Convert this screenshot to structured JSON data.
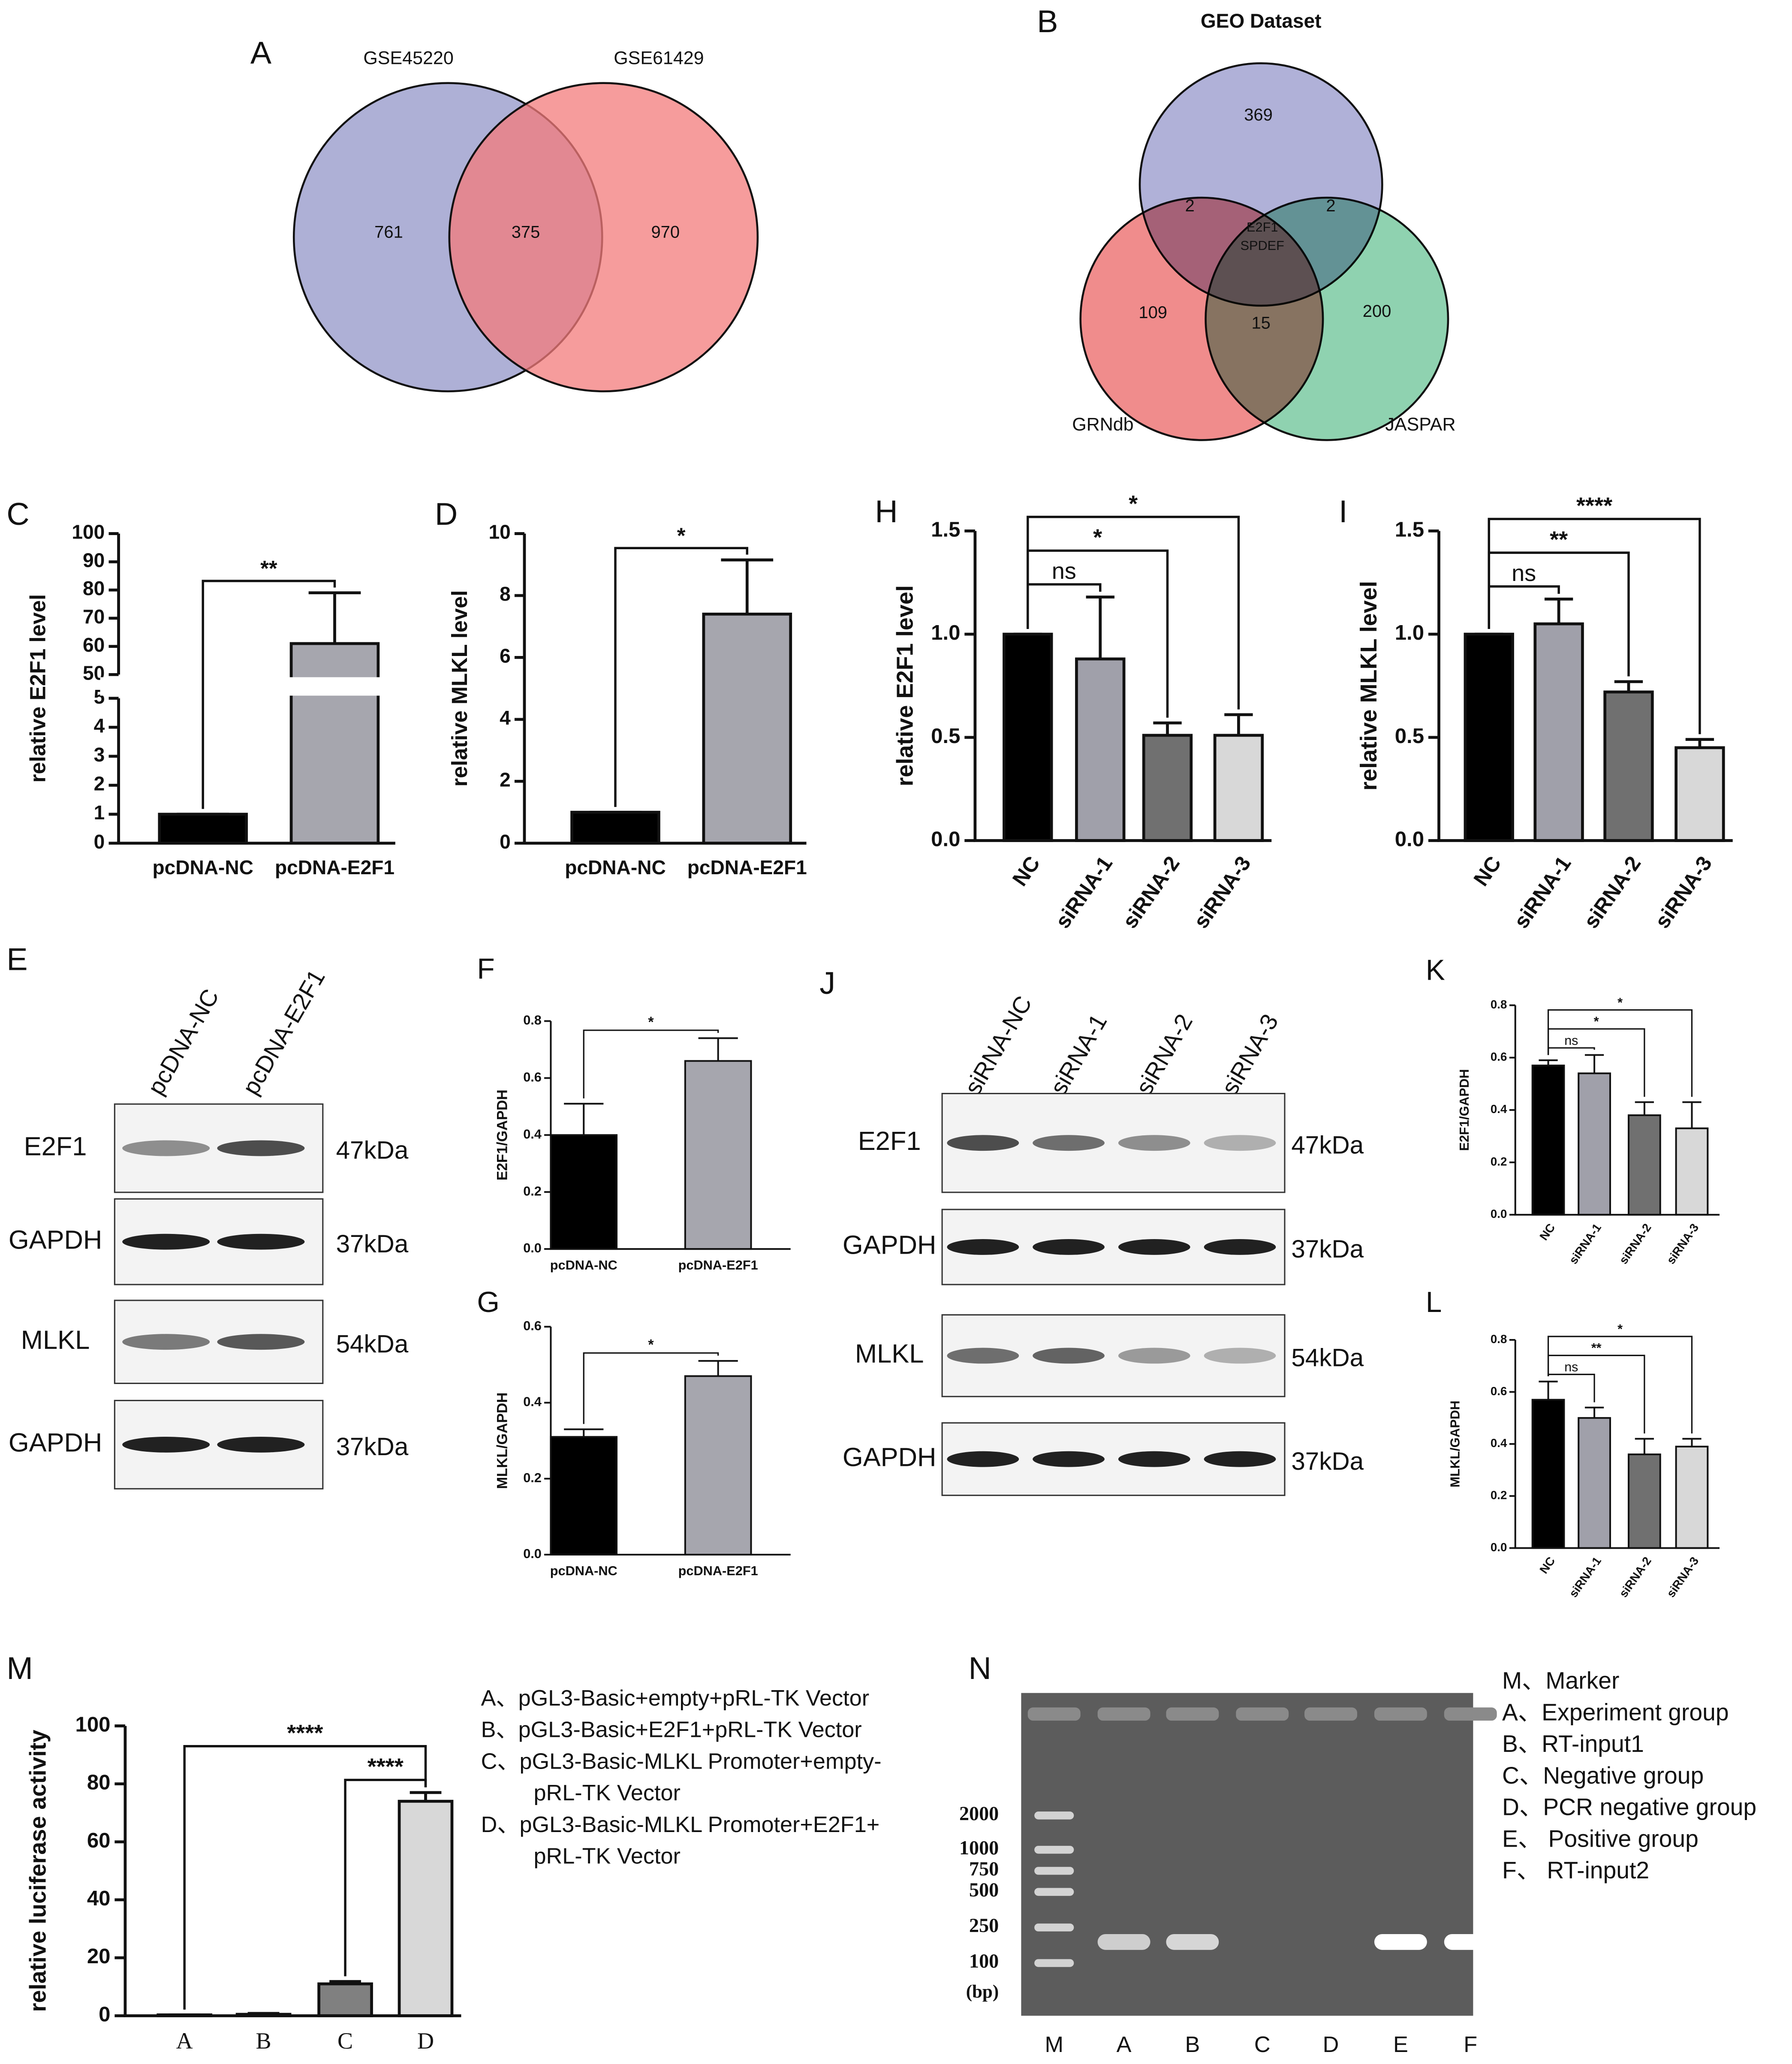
{
  "chart_data": [
    {
      "type": "bar",
      "panel": "C",
      "ylabel": "relative E2F1 level",
      "categories": [
        "pcDNA-NC",
        "pcDNA-E2F1"
      ],
      "values": [
        1,
        61
      ],
      "errors": [
        0,
        18
      ],
      "colors": [
        "#000000",
        "#a6a6ae"
      ],
      "ylim": [
        0,
        100
      ],
      "axis_break": [
        5,
        50
      ],
      "yticks": [
        0,
        1,
        2,
        3,
        4,
        5,
        50,
        60,
        70,
        80,
        90,
        100
      ],
      "brackets": [
        {
          "from": "pcDNA-NC",
          "to": "pcDNA-E2F1",
          "label": "**"
        }
      ]
    },
    {
      "type": "bar",
      "panel": "D",
      "ylabel": "relative MLKL level",
      "categories": [
        "pcDNA-NC",
        "pcDNA-E2F1"
      ],
      "values": [
        1,
        7.4
      ],
      "errors": [
        0,
        1.75
      ],
      "colors": [
        "#000000",
        "#a6a6ae"
      ],
      "ylim": [
        0,
        10
      ],
      "yticks": [
        0,
        2,
        4,
        6,
        8,
        10
      ],
      "brackets": [
        {
          "from": "pcDNA-NC",
          "to": "pcDNA-E2F1",
          "label": "*"
        }
      ]
    },
    {
      "type": "bar",
      "panel": "F",
      "ylabel": "E2F1/GAPDH",
      "categories": [
        "pcDNA-NC",
        "pcDNA-E2F1"
      ],
      "values": [
        0.4,
        0.66
      ],
      "errors": [
        0.11,
        0.08
      ],
      "colors": [
        "#000000",
        "#a6a6ae"
      ],
      "ylim": [
        0,
        0.8
      ],
      "yticks": [
        {
          "value": 0,
          "label": "0.0"
        },
        0.2,
        0.4,
        0.6,
        0.8
      ],
      "brackets": [
        {
          "from": "pcDNA-NC",
          "to": "pcDNA-E2F1",
          "label": "*"
        }
      ]
    },
    {
      "type": "bar",
      "panel": "G",
      "ylabel": "MLKL/GAPDH",
      "categories": [
        "pcDNA-NC",
        "pcDNA-E2F1"
      ],
      "values": [
        0.31,
        0.47
      ],
      "errors": [
        0.02,
        0.04
      ],
      "colors": [
        "#000000",
        "#a6a6ae"
      ],
      "ylim": [
        0,
        0.6
      ],
      "yticks": [
        {
          "value": 0,
          "label": "0.0"
        },
        0.2,
        0.4,
        0.6
      ],
      "brackets": [
        {
          "from": "pcDNA-NC",
          "to": "pcDNA-E2F1",
          "label": "*"
        }
      ]
    },
    {
      "type": "bar",
      "panel": "H",
      "ylabel": "relative E2F1 level",
      "categories": [
        "NC",
        "siRNA-1",
        "siRNA-2",
        "siRNA-3"
      ],
      "values": [
        1,
        0.88,
        0.51,
        0.51
      ],
      "errors": [
        0,
        0.3,
        0.06,
        0.1
      ],
      "colors": [
        "#000000",
        "#a0a0aa",
        "#707070",
        "#d8d8d8"
      ],
      "ylim": [
        0,
        1.5
      ],
      "yticks": [
        {
          "value": 0,
          "label": "0.0"
        },
        0.5,
        {
          "value": 1,
          "label": "1.0"
        },
        1.5
      ],
      "brackets": [
        {
          "from": "NC",
          "to": "siRNA-1",
          "label": "ns"
        },
        {
          "from": "NC",
          "to": "siRNA-2",
          "label": "*"
        },
        {
          "from": "NC",
          "to": "siRNA-3",
          "label": "*"
        }
      ]
    },
    {
      "type": "bar",
      "panel": "I",
      "ylabel": "relative MLKL level",
      "categories": [
        "NC",
        "siRNA-1",
        "siRNA-2",
        "siRNA-3"
      ],
      "values": [
        1,
        1.05,
        0.72,
        0.45
      ],
      "errors": [
        0,
        0.12,
        0.05,
        0.04
      ],
      "colors": [
        "#000000",
        "#a0a0aa",
        "#707070",
        "#d8d8d8"
      ],
      "ylim": [
        0,
        1.5
      ],
      "yticks": [
        {
          "value": 0,
          "label": "0.0"
        },
        0.5,
        {
          "value": 1,
          "label": "1.0"
        },
        1.5
      ],
      "brackets": [
        {
          "from": "NC",
          "to": "siRNA-1",
          "label": "ns"
        },
        {
          "from": "NC",
          "to": "siRNA-2",
          "label": "**"
        },
        {
          "from": "NC",
          "to": "siRNA-3",
          "label": "****"
        }
      ]
    },
    {
      "type": "bar",
      "panel": "K",
      "ylabel": "E2F1/GAPDH",
      "categories": [
        "NC",
        "siRNA-1",
        "siRNA-2",
        "siRNA-3"
      ],
      "values": [
        0.57,
        0.54,
        0.38,
        0.33
      ],
      "errors": [
        0.02,
        0.07,
        0.05,
        0.1
      ],
      "colors": [
        "#000000",
        "#a0a0aa",
        "#707070",
        "#d8d8d8"
      ],
      "ylim": [
        0,
        0.8
      ],
      "yticks": [
        {
          "value": 0,
          "label": "0.0"
        },
        0.2,
        0.4,
        0.6,
        0.8
      ],
      "brackets": [
        {
          "from": "NC",
          "to": "siRNA-1",
          "label": "ns"
        },
        {
          "from": "NC",
          "to": "siRNA-2",
          "label": "*"
        },
        {
          "from": "NC",
          "to": "siRNA-3",
          "label": "*"
        }
      ]
    },
    {
      "type": "bar",
      "panel": "L",
      "ylabel": "MLKL/GAPDH",
      "categories": [
        "NC",
        "siRNA-1",
        "siRNA-2",
        "siRNA-3"
      ],
      "values": [
        0.57,
        0.5,
        0.36,
        0.39
      ],
      "errors": [
        0.07,
        0.04,
        0.06,
        0.03
      ],
      "colors": [
        "#000000",
        "#a0a0aa",
        "#707070",
        "#d8d8d8"
      ],
      "ylim": [
        0,
        0.8
      ],
      "yticks": [
        {
          "value": 0,
          "label": "0.0"
        },
        0.2,
        0.4,
        0.6,
        0.8
      ],
      "brackets": [
        {
          "from": "NC",
          "to": "siRNA-1",
          "label": "ns"
        },
        {
          "from": "NC",
          "to": "siRNA-2",
          "label": "**"
        },
        {
          "from": "NC",
          "to": "siRNA-3",
          "label": "*"
        }
      ]
    },
    {
      "type": "bar",
      "panel": "M",
      "ylabel": "relative luciferase activity",
      "categories": [
        "A",
        "B",
        "C",
        "D"
      ],
      "values": [
        0.3,
        0.5,
        11,
        74
      ],
      "errors": [
        0,
        0.3,
        0.8,
        3
      ],
      "colors": [
        "#a6a6ae",
        "#a6a6ae",
        "#808080",
        "#d8d8d8"
      ],
      "ylim": [
        0,
        100
      ],
      "yticks": [
        0,
        20,
        40,
        60,
        80,
        100
      ],
      "brackets": [
        {
          "from": "C",
          "to": "D",
          "label": "****"
        },
        {
          "from": "A",
          "to": "D",
          "label": "****"
        }
      ],
      "legend": [
        "A、pGL3-Basic+empty+pRL-TK Vector",
        "B、pGL3-Basic+E2F1+pRL-TK Vector",
        "C、pGL3-Basic-MLKL Promoter+empty-",
        "pRL-TK Vector",
        "D、pGL3-Basic-MLKL Promoter+E2F1+",
        "pRL-TK Vector"
      ]
    }
  ],
  "venn_a": {
    "panel": "A",
    "sets": [
      "GSE45220",
      "GSE61429"
    ],
    "counts": [
      761,
      375,
      970
    ]
  },
  "venn_b": {
    "panel": "B",
    "sets": [
      "GEO Dataset",
      "GRNdb",
      "JASPAR"
    ],
    "counts": [
      369,
      2,
      2,
      109,
      15,
      200
    ],
    "center": [
      "E2F1",
      "SPDEF"
    ]
  },
  "blot_e": {
    "panel": "E",
    "lanes": [
      "pcDNA-NC",
      "pcDNA-E2F1"
    ],
    "rows": [
      {
        "protein": "E2F1",
        "size": "47kDa"
      },
      {
        "protein": "GAPDH",
        "size": "37kDa"
      },
      {
        "protein": "MLKL",
        "size": "54kDa"
      },
      {
        "protein": "GAPDH",
        "size": "37kDa"
      }
    ]
  },
  "blot_j": {
    "panel": "J",
    "lanes": [
      "siRNA-NC",
      "siRNA-1",
      "siRNA-2",
      "siRNA-3"
    ],
    "rows": [
      {
        "protein": "E2F1",
        "size": "47kDa"
      },
      {
        "protein": "GAPDH",
        "size": "37kDa"
      },
      {
        "protein": "MLKL",
        "size": "54kDa"
      },
      {
        "protein": "GAPDH",
        "size": "37kDa"
      }
    ]
  },
  "gel_n": {
    "panel": "N",
    "lanes": [
      "M",
      "A",
      "B",
      "C",
      "D",
      "E",
      "F"
    ],
    "marker": [
      2000,
      1000,
      750,
      500,
      250,
      100
    ],
    "unit": "(bp)",
    "legend": [
      "M、Marker",
      "A、Experiment group",
      "B、RT-input1",
      "C、Negative group",
      "D、PCR negative group",
      "E、 Positive group",
      "F、 RT-input2"
    ]
  }
}
